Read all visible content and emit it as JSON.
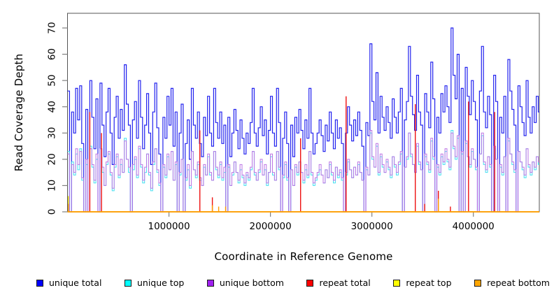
{
  "chart_data": {
    "type": "line",
    "subtype": "step",
    "title": "",
    "xlabel": "Coordinate in Reference Genome",
    "ylabel": "Read Coverage Depth",
    "x_range": [
      0,
      4650000
    ],
    "y_range": [
      0,
      75
    ],
    "x_ticks": [
      1000000,
      2000000,
      3000000,
      4000000
    ],
    "x_tick_labels": [
      "1000000",
      "2000000",
      "3000000",
      "4000000"
    ],
    "y_ticks": [
      0,
      10,
      20,
      30,
      40,
      50,
      60,
      70
    ],
    "y_tick_labels": [
      "0",
      "10",
      "20",
      "30",
      "40",
      "50",
      "60",
      "70"
    ],
    "grid": false,
    "legend_position": "bottom",
    "frame_color": "#555555",
    "tick_color": "#808080",
    "x_step": 20000,
    "series": [
      {
        "name": "unique total",
        "color": "#0000ff",
        "line_color": "#2222ee",
        "line_width": 1.2,
        "kind": "dense",
        "dx": 20000,
        "values": [
          46,
          0,
          38,
          30,
          47,
          35,
          48,
          26,
          0,
          39,
          0,
          50,
          36,
          24,
          43,
          0,
          49,
          33,
          21,
          38,
          47,
          30,
          18,
          36,
          44,
          28,
          39,
          31,
          56,
          41,
          33,
          0,
          35,
          42,
          28,
          50,
          36,
          24,
          33,
          45,
          30,
          18,
          38,
          49,
          32,
          22,
          0,
          36,
          28,
          44,
          33,
          47,
          25,
          38,
          0,
          30,
          41,
          0,
          26,
          35,
          20,
          47,
          33,
          28,
          38,
          26,
          21,
          36,
          29,
          44,
          30,
          25,
          47,
          34,
          28,
          38,
          26,
          33,
          0,
          36,
          21,
          30,
          39,
          31,
          24,
          35,
          28,
          22,
          30,
          26,
          34,
          47,
          30,
          25,
          32,
          40,
          29,
          35,
          22,
          31,
          44,
          30,
          25,
          47,
          34,
          0,
          28,
          38,
          26,
          0,
          33,
          21,
          36,
          30,
          39,
          31,
          24,
          35,
          28,
          47,
          30,
          22,
          26,
          30,
          35,
          29,
          23,
          33,
          27,
          38,
          30,
          24,
          35,
          28,
          32,
          26,
          0,
          30,
          40,
          33,
          27,
          35,
          29,
          38,
          31,
          25,
          0,
          34,
          29,
          64,
          42,
          35,
          53,
          30,
          44,
          36,
          31,
          40,
          34,
          28,
          43,
          36,
          30,
          38,
          47,
          0,
          35,
          42,
          63,
          44,
          37,
          31,
          52,
          38,
          33,
          0,
          45,
          38,
          32,
          57,
          43,
          0,
          36,
          30,
          45,
          38,
          48,
          40,
          34,
          70,
          52,
          43,
          60,
          0,
          47,
          0,
          55,
          44,
          37,
          50,
          42,
          35,
          0,
          46,
          63,
          38,
          32,
          44,
          37,
          0,
          52,
          42,
          0,
          36,
          30,
          44,
          0,
          58,
          46,
          39,
          33,
          0,
          48,
          40,
          34,
          29,
          50,
          36,
          30,
          40,
          34,
          44,
          38
        ]
      },
      {
        "name": "unique top",
        "color": "#00ffff",
        "line_color": "#44dff0",
        "line_width": 1,
        "kind": "dense",
        "dx": 20000,
        "values": [
          23,
          0,
          19,
          14,
          22,
          16,
          24,
          12,
          0,
          18,
          0,
          25,
          17,
          11,
          20,
          0,
          24,
          15,
          10,
          18,
          22,
          14,
          8,
          17,
          21,
          13,
          18,
          15,
          28,
          20,
          15,
          0,
          16,
          20,
          13,
          24,
          17,
          11,
          15,
          22,
          14,
          8,
          18,
          24,
          15,
          10,
          0,
          17,
          13,
          21,
          16,
          23,
          12,
          18,
          0,
          14,
          20,
          0,
          12,
          16,
          9,
          23,
          16,
          13,
          18,
          12,
          10,
          17,
          14,
          21,
          14,
          12,
          23,
          16,
          13,
          18,
          12,
          15,
          0,
          17,
          10,
          14,
          19,
          15,
          11,
          16,
          13,
          10,
          14,
          12,
          16,
          23,
          14,
          12,
          15,
          19,
          14,
          16,
          10,
          15,
          21,
          14,
          12,
          23,
          16,
          0,
          13,
          18,
          12,
          0,
          16,
          10,
          17,
          14,
          19,
          15,
          11,
          16,
          13,
          23,
          14,
          10,
          12,
          14,
          16,
          14,
          11,
          16,
          13,
          18,
          14,
          11,
          17,
          13,
          15,
          12,
          0,
          14,
          19,
          16,
          13,
          17,
          14,
          18,
          15,
          12,
          0,
          16,
          14,
          30,
          20,
          17,
          25,
          14,
          21,
          17,
          15,
          19,
          16,
          13,
          21,
          17,
          14,
          18,
          22,
          0,
          17,
          20,
          30,
          21,
          18,
          15,
          25,
          18,
          16,
          0,
          21,
          18,
          15,
          27,
          20,
          0,
          17,
          14,
          21,
          18,
          23,
          19,
          16,
          31,
          24,
          20,
          28,
          0,
          22,
          0,
          26,
          21,
          17,
          23,
          20,
          16,
          0,
          22,
          29,
          18,
          15,
          21,
          17,
          0,
          24,
          20,
          0,
          17,
          14,
          21,
          0,
          27,
          22,
          18,
          15,
          0,
          23,
          19,
          16,
          13,
          24,
          17,
          14,
          19,
          16,
          21,
          18
        ]
      },
      {
        "name": "unique bottom",
        "color": "#a020f0",
        "line_color": "#bb74e4",
        "line_width": 1,
        "kind": "dense",
        "dx": 20000,
        "values": [
          22,
          0,
          18,
          15,
          24,
          18,
          23,
          13,
          0,
          20,
          0,
          24,
          18,
          12,
          22,
          0,
          24,
          17,
          10,
          19,
          23,
          15,
          9,
          18,
          22,
          14,
          20,
          15,
          27,
          20,
          17,
          0,
          18,
          21,
          14,
          25,
          18,
          12,
          17,
          22,
          15,
          9,
          19,
          24,
          16,
          11,
          0,
          18,
          14,
          22,
          16,
          23,
          12,
          19,
          0,
          15,
          20,
          0,
          13,
          18,
          10,
          23,
          16,
          14,
          19,
          13,
          10,
          18,
          14,
          22,
          15,
          12,
          23,
          17,
          14,
          19,
          13,
          17,
          0,
          18,
          10,
          15,
          19,
          15,
          12,
          18,
          14,
          11,
          15,
          13,
          17,
          23,
          15,
          12,
          16,
          20,
          14,
          18,
          11,
          15,
          22,
          15,
          12,
          23,
          17,
          0,
          14,
          19,
          13,
          0,
          16,
          10,
          18,
          15,
          19,
          15,
          12,
          18,
          14,
          23,
          15,
          11,
          13,
          15,
          18,
          14,
          11,
          16,
          13,
          19,
          15,
          12,
          17,
          14,
          16,
          13,
          0,
          15,
          20,
          16,
          13,
          17,
          14,
          19,
          15,
          12,
          0,
          17,
          14,
          31,
          21,
          17,
          26,
          15,
          22,
          18,
          15,
          20,
          17,
          14,
          21,
          18,
          15,
          19,
          23,
          0,
          17,
          21,
          30,
          22,
          18,
          15,
          26,
          19,
          16,
          0,
          22,
          19,
          16,
          28,
          21,
          0,
          18,
          15,
          22,
          19,
          24,
          20,
          17,
          30,
          25,
          21,
          29,
          0,
          23,
          0,
          27,
          21,
          18,
          24,
          20,
          17,
          0,
          22,
          30,
          19,
          16,
          21,
          18,
          0,
          25,
          20,
          0,
          18,
          15,
          21,
          0,
          28,
          22,
          19,
          16,
          0,
          23,
          19,
          17,
          14,
          24,
          18,
          15,
          19,
          17,
          21,
          19
        ]
      },
      {
        "name": "repeat total",
        "color": "#ff0000",
        "line_color": "#ee1111",
        "line_width": 1.4,
        "kind": "spikes",
        "baseline": 0,
        "spikes": [
          [
            220000,
            38
          ],
          [
            335000,
            30
          ],
          [
            1304000,
            31
          ],
          [
            1428000,
            5.5
          ],
          [
            2297000,
            28
          ],
          [
            2746000,
            44
          ],
          [
            3428000,
            41
          ],
          [
            3520000,
            3
          ],
          [
            3655000,
            8
          ],
          [
            3774000,
            2
          ],
          [
            3952000,
            42
          ],
          [
            4210000,
            38
          ]
        ]
      },
      {
        "name": "repeat top",
        "color": "#ffff00",
        "line_color": "#f5e400",
        "line_width": 1.4,
        "kind": "spikes",
        "baseline": 0,
        "spikes": [
          [
            8000,
            6
          ]
        ]
      },
      {
        "name": "repeat bottom",
        "color": "#ffa500",
        "line_color": "#ff9d00",
        "line_width": 1.4,
        "kind": "spikes",
        "baseline": 0,
        "spikes": [
          [
            8000,
            3
          ],
          [
            1428000,
            2.5
          ],
          [
            1490000,
            2
          ],
          [
            1558000,
            2
          ],
          [
            3655000,
            5
          ]
        ]
      }
    ]
  }
}
